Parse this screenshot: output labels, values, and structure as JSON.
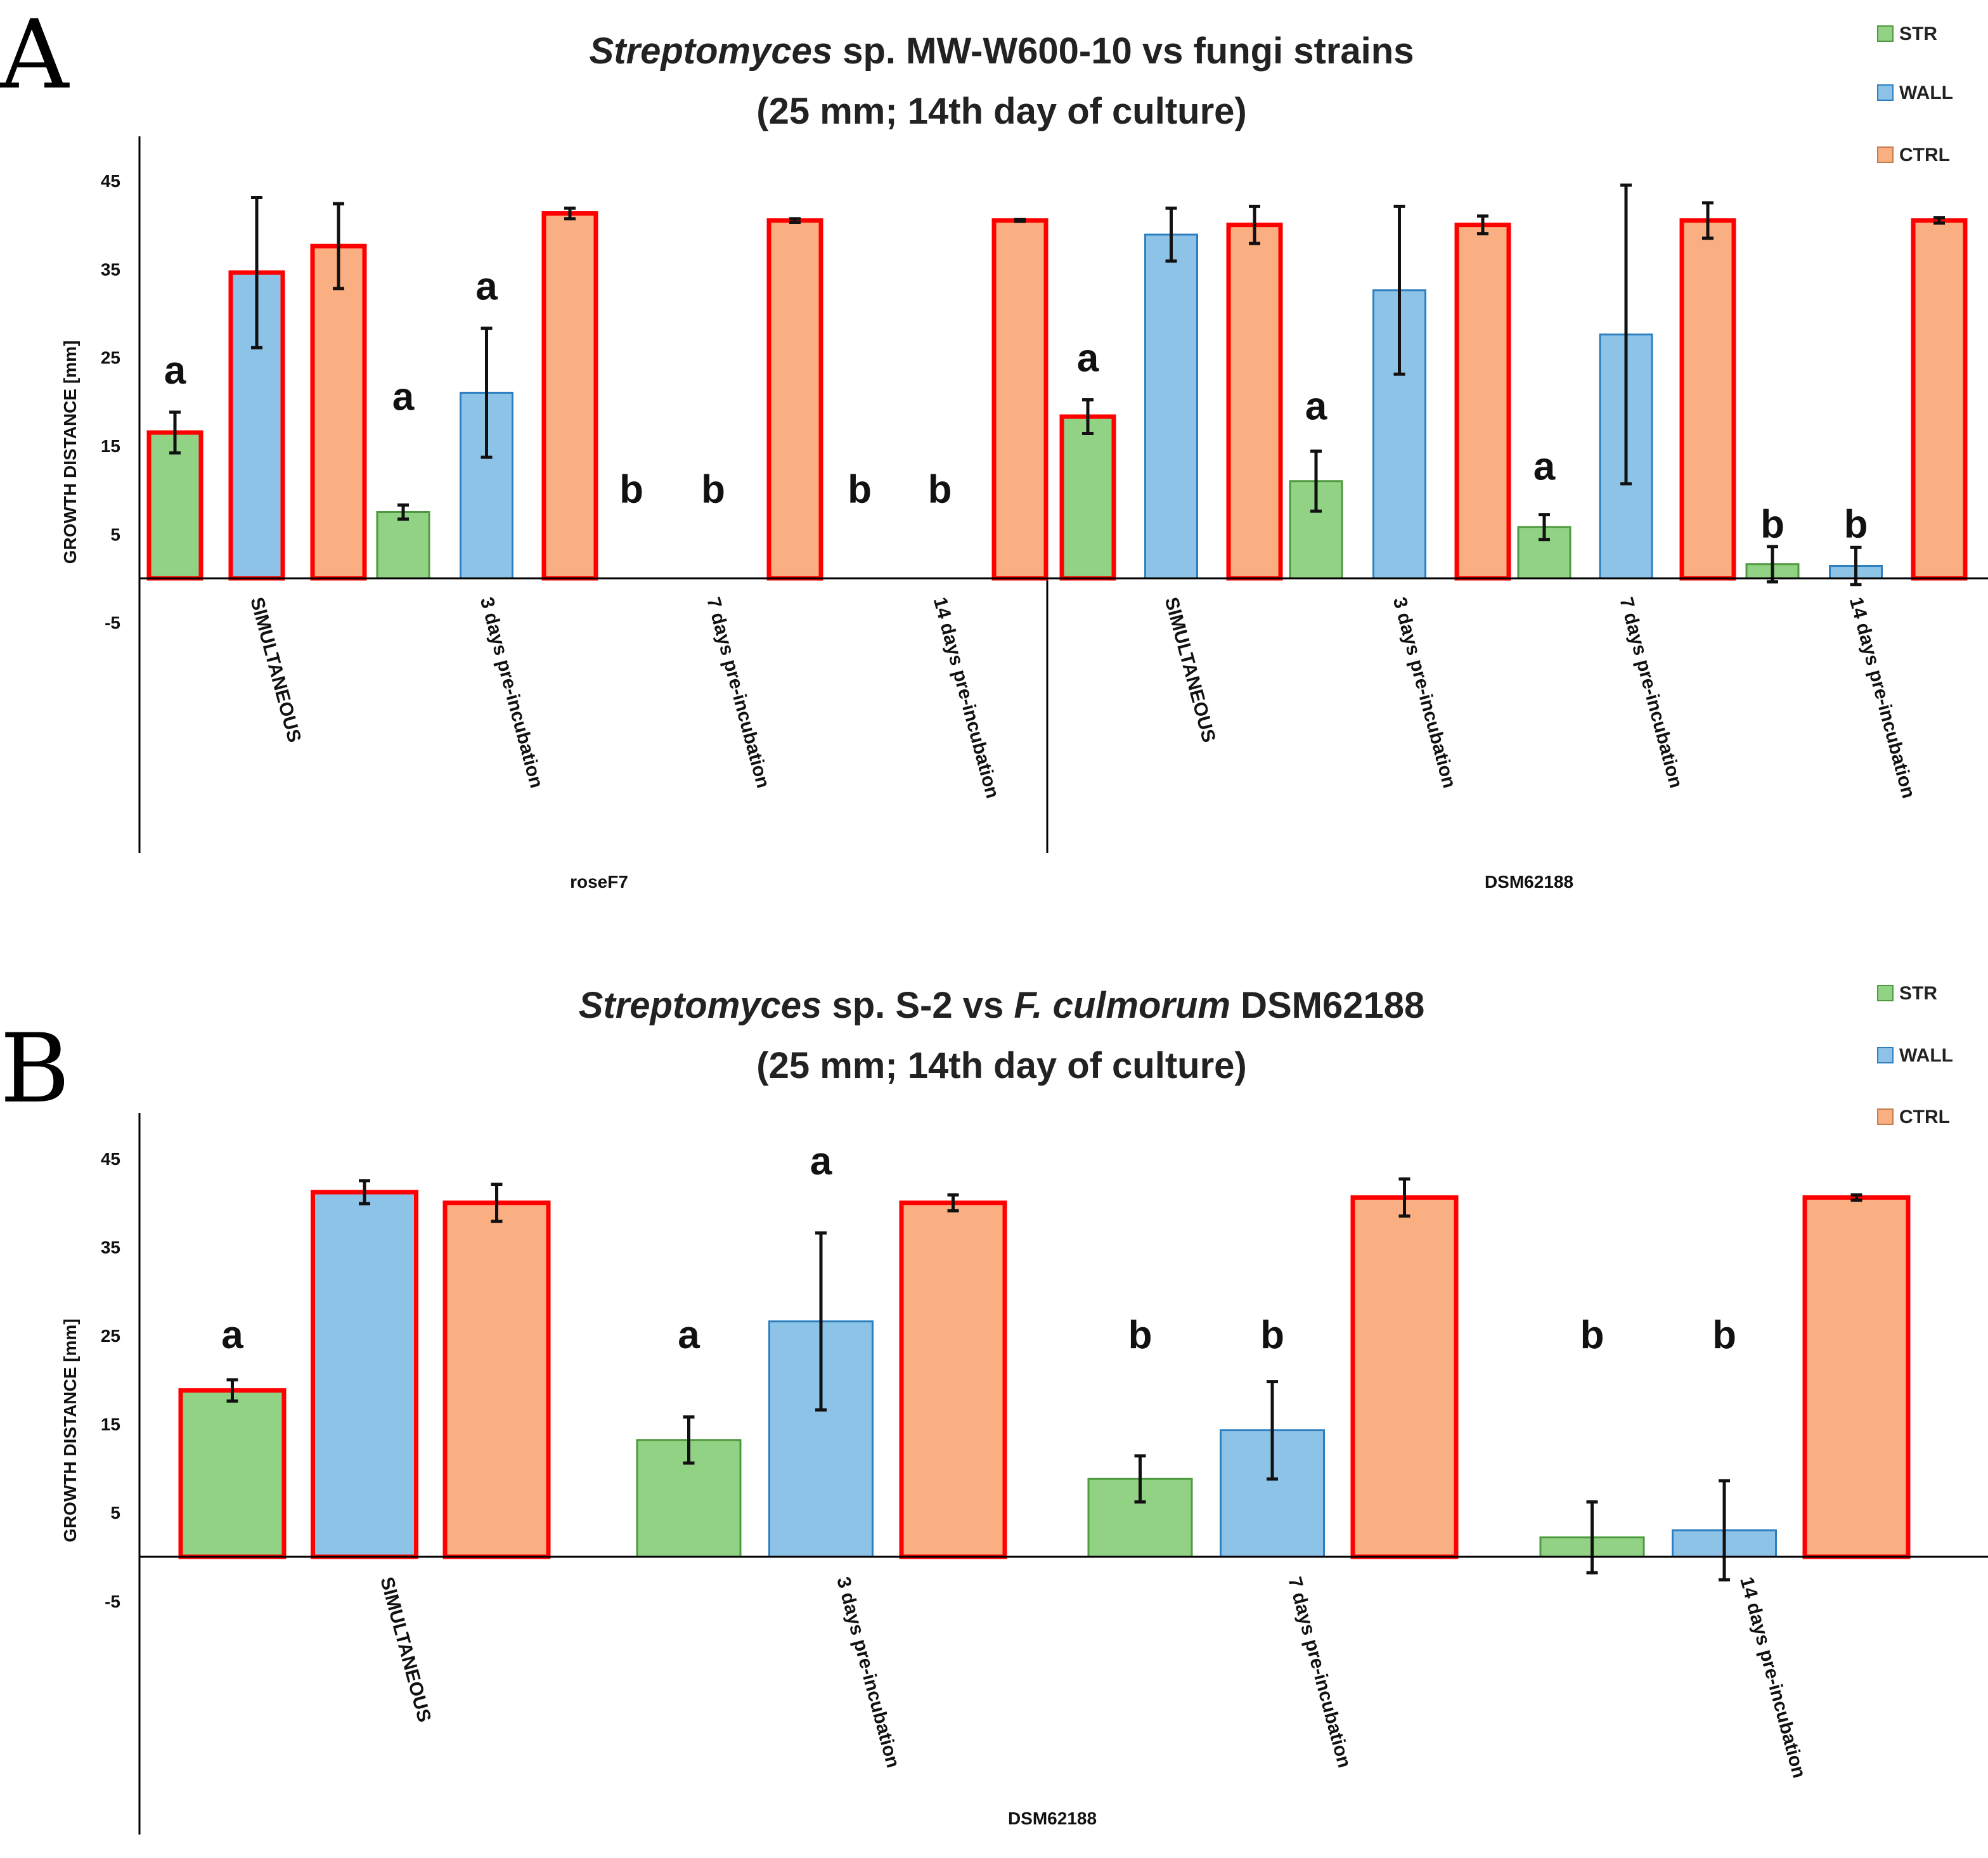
{
  "colors": {
    "STR": "#92D285",
    "STR_stroke": "#4E9A3E",
    "WALL": "#8EC3E8",
    "WALL_stroke": "#2D7FC0",
    "CTRL": "#FAAF82",
    "CTRL_stroke": "#C87A4A",
    "highlight_stroke": "#FF0000",
    "axis": "#000000"
  },
  "chart_data": [
    {
      "panel_letter": "A",
      "type": "bar",
      "title": "Streptomyces sp. MW-W600-10 vs fungi strains",
      "title_italic": "Streptomyces",
      "title_rest": " sp. MW-W600-10 vs fungi strains",
      "subtitle": "(25 mm; 14th day of culture)",
      "ylabel": "GROWTH DISTANCE [mm]",
      "ylim": [
        -5,
        50
      ],
      "yticks": [
        45,
        35,
        25,
        15,
        5,
        -5
      ],
      "legend": [
        "STR",
        "WALL",
        "CTRL"
      ],
      "groups": [
        "roseF7",
        "DSM62188"
      ],
      "categories": [
        "SIMULTANEOUS",
        "3 days pre-incubation",
        "7 days pre-incubation",
        "14 days pre-incubation",
        "SIMULTANEOUS",
        "3 days pre-incubation",
        "7 days pre-incubation",
        "14 days pre-incubation"
      ],
      "series": [
        {
          "name": "STR",
          "values": [
            16.5,
            7.5,
            0,
            0,
            18.3,
            11,
            5.8,
            1.6
          ],
          "errors": [
            2.3,
            0.8,
            0,
            0,
            1.9,
            3.4,
            1.4,
            2.0
          ],
          "highlight": [
            true,
            false,
            false,
            false,
            true,
            false,
            false,
            false
          ],
          "labels": [
            "a",
            "a",
            "b",
            "b",
            "a",
            "a",
            "a",
            "b"
          ]
        },
        {
          "name": "WALL",
          "values": [
            34.6,
            21,
            0,
            0,
            38.9,
            32.6,
            27.6,
            1.4
          ],
          "errors": [
            8.5,
            7.3,
            0,
            0,
            3.0,
            9.5,
            16.9,
            2.1
          ],
          "highlight": [
            true,
            false,
            false,
            false,
            false,
            false,
            false,
            false
          ],
          "labels": [
            "",
            "a",
            "b",
            "b",
            "",
            "",
            "",
            "b"
          ]
        },
        {
          "name": "CTRL",
          "values": [
            37.6,
            41.3,
            40.5,
            40.5,
            40,
            40,
            40.5,
            40.5
          ],
          "errors": [
            4.8,
            0.6,
            0.2,
            0.1,
            2.1,
            1.0,
            2.0,
            0.3
          ],
          "highlight": [
            true,
            true,
            true,
            true,
            true,
            true,
            true,
            true
          ],
          "labels": [
            "",
            "",
            "",
            "",
            "",
            "",
            "",
            ""
          ]
        }
      ]
    },
    {
      "panel_letter": "B",
      "type": "bar",
      "title": "Streptomyces sp. S-2 vs F. culmorum DSM62188",
      "title_italic": "Streptomyces",
      "title_mid": " sp. S-2 vs ",
      "title_italic2": "F. culmorum",
      "title_rest": " DSM62188",
      "subtitle": "(25 mm; 14th day of culture)",
      "ylabel": "GROWTH DISTANCE [mm]",
      "ylim": [
        -5,
        50
      ],
      "yticks": [
        45,
        35,
        25,
        15,
        5,
        -5
      ],
      "legend": [
        "STR",
        "WALL",
        "CTRL"
      ],
      "groups": [
        "DSM62188"
      ],
      "categories": [
        "SIMULTANEOUS",
        "3 days pre-incubation",
        "7 days pre-incubation",
        "14 days pre-incubation"
      ],
      "series": [
        {
          "name": "STR",
          "values": [
            18.8,
            13.2,
            8.8,
            2.2
          ],
          "errors": [
            1.2,
            2.6,
            2.6,
            4.0
          ],
          "highlight": [
            true,
            false,
            false,
            false
          ],
          "labels": [
            "a",
            "a",
            "b",
            "b"
          ]
        },
        {
          "name": "WALL",
          "values": [
            41.2,
            26.6,
            14.3,
            3.0
          ],
          "errors": [
            1.3,
            10.0,
            5.5,
            5.6
          ],
          "highlight": [
            true,
            false,
            false,
            false
          ],
          "labels": [
            "",
            "a",
            "b",
            "b"
          ]
        },
        {
          "name": "CTRL",
          "values": [
            40,
            40,
            40.6,
            40.6
          ],
          "errors": [
            2.1,
            0.9,
            2.1,
            0.3
          ],
          "highlight": [
            true,
            true,
            true,
            true
          ],
          "labels": [
            "",
            "",
            "",
            ""
          ]
        }
      ]
    }
  ]
}
